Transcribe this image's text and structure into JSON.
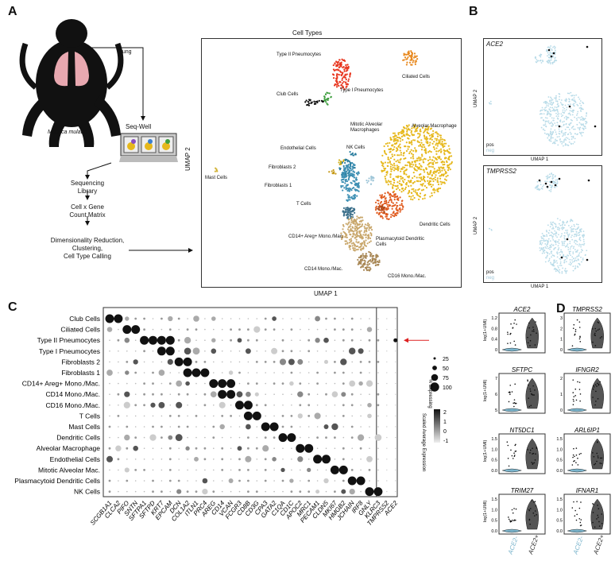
{
  "panels": {
    "a": "A",
    "b": "B",
    "c": "C",
    "d": "D"
  },
  "panel_a": {
    "lung_label": "Lung",
    "species": "Macaca mulatta",
    "seqwell": "Seq-Well",
    "flow_steps": [
      "Sequencing",
      "Library",
      "Cell x Gene",
      "Count Matrix",
      "Dimensionality Reduction,",
      "Clustering,",
      "Cell Type Calling"
    ],
    "umap": {
      "title": "Cell Types",
      "xlabel": "UMAP 1",
      "ylabel": "UMAP 2",
      "clusters": [
        {
          "name": "Type II Pneumocytes",
          "color": "#e8361f"
        },
        {
          "name": "Type I Pneumocytes",
          "color": "#3f9e3f"
        },
        {
          "name": "Club Cells",
          "color": "#111111"
        },
        {
          "name": "Ciliated Cells",
          "color": "#e8891f"
        },
        {
          "name": "Mitotic Alveolar Macrophages",
          "color": "#9fc6d8"
        },
        {
          "name": "Alveolar Macrophage",
          "color": "#e6b81c"
        },
        {
          "name": "Endothelial Cells",
          "color": "#2b7d9e"
        },
        {
          "name": "NK Cells",
          "color": "#2b7d9e"
        },
        {
          "name": "Fibroblasts 2",
          "color": "#d4b016"
        },
        {
          "name": "Fibroblasts 1",
          "color": "#c69a1a"
        },
        {
          "name": "Mast Cells",
          "color": "#d2b43a"
        },
        {
          "name": "T Cells",
          "color": "#3f90b4"
        },
        {
          "name": "Dendritic Cells",
          "color": "#e05a1e"
        },
        {
          "name": "Plasmacytoid Dendritic Cells",
          "color": "#b04a1a"
        },
        {
          "name": "CD14+ Areg+ Mono./Mac.",
          "color": "#3b6f8a"
        },
        {
          "name": "CD14 Mono./Mac.",
          "color": "#c8a66a"
        },
        {
          "name": "CD16 Mono./Mac.",
          "color": "#a88755"
        }
      ]
    }
  },
  "panel_b": {
    "plots": [
      {
        "gene": "ACE2",
        "legend": "pos",
        "legend2": "neg"
      },
      {
        "gene": "TMPRSS2",
        "legend": "pos",
        "legend2": "neg"
      }
    ],
    "xlabel": "UMAP 1",
    "ylabel": "UMAP 2"
  },
  "chart_data": [
    {
      "type": "scatter",
      "subtype": "dotplot",
      "rows": [
        "Club Cells",
        "Ciliated Cells",
        "Type II Pneumocytes",
        "Type I Pneumocytes",
        "Fibroblasts 2",
        "Fibroblasts 1",
        "CD14+ Areg+ Mono./Mac.",
        "CD14 Mono./Mac.",
        "CD16 Mono./Mac.",
        "T Cells",
        "Mast Cells",
        "Dendritic Cells",
        "Alveolar Macrophage",
        "Endothelial Cells",
        "Mitotic Alveolar Mac.",
        "Plasmacytoid Dendritic Cells",
        "NK Cells"
      ],
      "genes": [
        "SCGB1A1",
        "CLCA2",
        "PIFO",
        "SNTN",
        "SFTPA1",
        "SFTPD",
        "KRT7",
        "EPCAM",
        "DCN",
        "COL1A2",
        "ITLN1",
        "PRC4",
        "AREG",
        "CD14",
        "VCAN",
        "FCGR3",
        "CD8B",
        "CD3G",
        "CPA3",
        "GATA2",
        "C1QA",
        "CD1C",
        "APOC2",
        "MRC1",
        "PECAM1",
        "CLDN5",
        "MKI67",
        "HMGB2",
        "JCHAIN",
        "IRF8",
        "GNLY",
        "KLRC3",
        "TMPRSS2",
        "ACE2"
      ],
      "marker_pairs": [
        [
          0,
          0
        ],
        [
          0,
          1
        ],
        [
          1,
          2
        ],
        [
          1,
          3
        ],
        [
          2,
          4
        ],
        [
          2,
          5
        ],
        [
          2,
          6
        ],
        [
          2,
          7
        ],
        [
          3,
          6
        ],
        [
          3,
          7
        ],
        [
          4,
          8
        ],
        [
          4,
          9
        ],
        [
          5,
          9
        ],
        [
          5,
          10
        ],
        [
          5,
          11
        ],
        [
          6,
          12
        ],
        [
          6,
          13
        ],
        [
          6,
          14
        ],
        [
          7,
          13
        ],
        [
          7,
          14
        ],
        [
          8,
          15
        ],
        [
          8,
          16
        ],
        [
          9,
          16
        ],
        [
          9,
          17
        ],
        [
          10,
          18
        ],
        [
          10,
          19
        ],
        [
          11,
          20
        ],
        [
          11,
          21
        ],
        [
          12,
          22
        ],
        [
          12,
          23
        ],
        [
          13,
          24
        ],
        [
          13,
          25
        ],
        [
          14,
          26
        ],
        [
          14,
          27
        ],
        [
          15,
          28
        ],
        [
          15,
          29
        ],
        [
          16,
          30
        ],
        [
          16,
          31
        ]
      ],
      "size_legend": {
        "title": "% Expressing",
        "values": [
          25,
          50,
          75,
          100
        ]
      },
      "color_legend": {
        "title": "Scaled Average Expression",
        "ticks": [
          2,
          1,
          0,
          -1
        ]
      }
    },
    {
      "type": "violin",
      "ylabel": "log(1+UMI)",
      "groups": [
        "ACE2-",
        "ACE2+"
      ],
      "group_colors": [
        "#7ab4cc",
        "#333333"
      ],
      "genes": [
        "ACE2",
        "TMPRSS2",
        "SFTPC",
        "IFNGR2",
        "NT5DC1",
        "ARL6IP1",
        "TRIM27",
        "IFNAR1"
      ],
      "yticks": [
        [
          [
            1.2,
            "1.2"
          ],
          [
            0.8,
            "0.8"
          ],
          [
            0.4,
            "0.4"
          ],
          [
            0,
            "0"
          ]
        ],
        [
          [
            3,
            "3"
          ],
          [
            2,
            "2"
          ],
          [
            1,
            "1"
          ],
          [
            0,
            "0"
          ]
        ],
        [
          [
            7,
            "7"
          ],
          [
            6,
            "6"
          ],
          [
            5,
            "5"
          ]
        ],
        [
          [
            2,
            "2"
          ],
          [
            1,
            "1"
          ],
          [
            0,
            "0"
          ]
        ],
        [
          [
            1.5,
            "1.5"
          ],
          [
            1.0,
            "1.0"
          ],
          [
            0.5,
            "0.5"
          ],
          [
            0,
            "0.0"
          ]
        ],
        [
          [
            1.5,
            "1.5"
          ],
          [
            1.0,
            "1.0"
          ],
          [
            0.5,
            "0.5"
          ],
          [
            0,
            "0.0"
          ]
        ],
        [
          [
            1.5,
            "1.5"
          ],
          [
            1.0,
            "1.0"
          ],
          [
            0.5,
            "0.5"
          ],
          [
            0,
            "0.0"
          ]
        ],
        [
          [
            1.5,
            "1.5"
          ],
          [
            1.0,
            "1.0"
          ],
          [
            0.5,
            "0.5"
          ],
          [
            0,
            "0.0"
          ]
        ]
      ]
    }
  ]
}
